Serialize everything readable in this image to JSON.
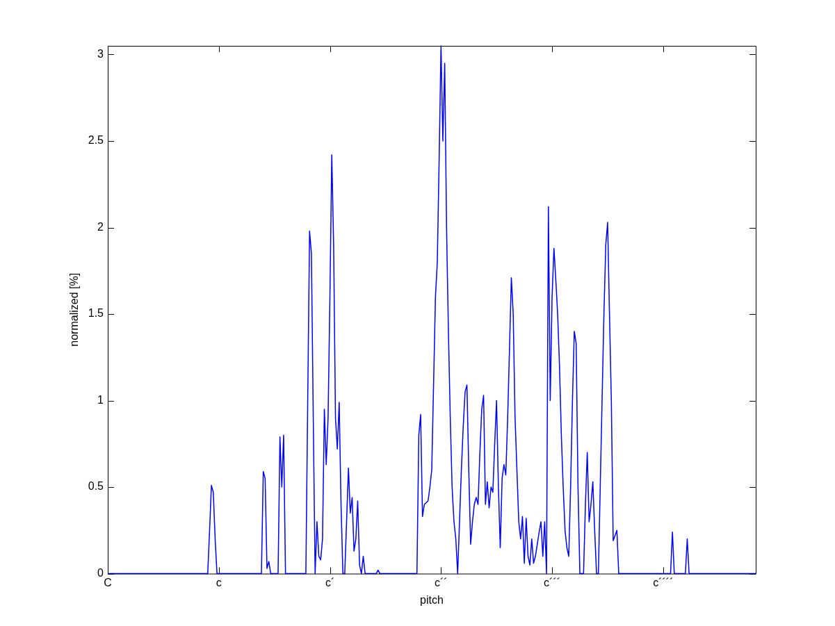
{
  "chart_data": {
    "type": "line",
    "xlabel": "pitch",
    "ylabel": "normalized [%]",
    "categories": [
      "C",
      null,
      null,
      null,
      null,
      null,
      null,
      null,
      null,
      null,
      null,
      null,
      null,
      null,
      null,
      null,
      null,
      null,
      null,
      null,
      null,
      null,
      null,
      null,
      null,
      null,
      null,
      null,
      null,
      null,
      null,
      null,
      null,
      null,
      null,
      null,
      null,
      null,
      null,
      null,
      null,
      null,
      null,
      null,
      null,
      null,
      null,
      null,
      null,
      null,
      null,
      null,
      null,
      null,
      null,
      null,
      null,
      null,
      null,
      null,
      "c",
      null,
      null,
      null,
      null,
      null,
      null,
      null,
      null,
      null,
      null,
      null,
      null,
      null,
      null,
      null,
      null,
      null,
      null,
      null,
      null,
      null,
      null,
      null,
      null,
      null,
      null,
      null,
      null,
      null,
      null,
      null,
      null,
      null,
      null,
      null,
      null,
      null,
      null,
      null,
      null,
      null,
      null,
      null,
      null,
      null,
      null,
      null,
      null,
      null,
      null,
      null,
      null,
      null,
      null,
      null,
      null,
      null,
      null,
      null,
      "c´",
      null,
      null,
      null,
      null,
      null,
      null,
      null,
      null,
      null,
      null,
      null,
      null,
      null,
      null,
      null,
      null,
      null,
      null,
      null,
      null,
      null,
      null,
      null,
      null,
      null,
      null,
      null,
      null,
      null,
      null,
      null,
      null,
      null,
      null,
      null,
      null,
      null,
      null,
      null,
      null,
      null,
      null,
      null,
      null,
      null,
      null,
      null,
      null,
      null,
      null,
      null,
      null,
      null,
      null,
      null,
      null,
      null,
      null,
      null,
      "c´´",
      null,
      null,
      null,
      null,
      null,
      null,
      null,
      null,
      null,
      null,
      null,
      null,
      null,
      null,
      null,
      null,
      null,
      null,
      null,
      null,
      null,
      null,
      null,
      null,
      null,
      null,
      null,
      null,
      null,
      null,
      null,
      null,
      null,
      null,
      null,
      null,
      null,
      null,
      null,
      null,
      null,
      null,
      null,
      null,
      null,
      null,
      null,
      null,
      null,
      null,
      null,
      null,
      null,
      null,
      null,
      null,
      null,
      null,
      null,
      "c´´´",
      null,
      null,
      null,
      null,
      null,
      null,
      null,
      null,
      null,
      null,
      null,
      null,
      null,
      null,
      null,
      null,
      null,
      null,
      null,
      null,
      null,
      null,
      null,
      null,
      null,
      null,
      null,
      null,
      null,
      null,
      null,
      null,
      null,
      null,
      null,
      null,
      null,
      null,
      null,
      null,
      null,
      null,
      null,
      null,
      null,
      null,
      null,
      null,
      null,
      null,
      null,
      null,
      null,
      null,
      null,
      null,
      null,
      null,
      null,
      "c´´´´",
      null,
      null,
      null,
      null,
      null,
      null,
      null,
      null,
      null,
      null,
      null,
      null,
      null,
      null,
      null,
      null,
      null,
      null,
      null,
      null,
      null,
      null,
      null,
      null,
      null,
      null,
      null,
      null,
      null,
      null,
      null,
      null,
      null,
      null,
      null,
      null,
      null,
      null,
      null,
      null,
      null,
      null,
      null,
      null,
      null,
      null,
      null,
      null,
      null,
      null
    ],
    "ylim": [
      0,
      3.05
    ],
    "yticks": [
      {
        "value": 0,
        "label": "0"
      },
      {
        "value": 0.5,
        "label": "0.5"
      },
      {
        "value": 1,
        "label": "1"
      },
      {
        "value": 1.5,
        "label": "1.5"
      },
      {
        "value": 2,
        "label": "2"
      },
      {
        "value": 2.5,
        "label": "2.5"
      },
      {
        "value": 3,
        "label": "3"
      }
    ],
    "grid": false,
    "legend": false,
    "marker": "none",
    "line_style": "solid",
    "series": [
      {
        "color": "#0000ff",
        "values": [
          0,
          0,
          0,
          0,
          0,
          0,
          0,
          0,
          0,
          0,
          0,
          0,
          0,
          0,
          0,
          0,
          0,
          0,
          0,
          0,
          0,
          0,
          0,
          0,
          0,
          0,
          0,
          0,
          0,
          0,
          0,
          0,
          0,
          0,
          0,
          0,
          0,
          0,
          0,
          0,
          0,
          0,
          0,
          0,
          0,
          0,
          0,
          0,
          0,
          0,
          0,
          0,
          0,
          0,
          0,
          0.25,
          0.51,
          0.47,
          0.2,
          0,
          0,
          0,
          0,
          0,
          0,
          0,
          0,
          0,
          0,
          0,
          0,
          0,
          0,
          0,
          0,
          0,
          0,
          0,
          0,
          0,
          0,
          0,
          0,
          0,
          0.59,
          0.55,
          0.03,
          0.07,
          0,
          0,
          0,
          0,
          0,
          0.79,
          0.5,
          0.8,
          0,
          0,
          0,
          0,
          0,
          0,
          0,
          0,
          0,
          0,
          0,
          0,
          0.99,
          1.98,
          1.85,
          0.9,
          0,
          0.3,
          0.1,
          0.08,
          0.2,
          0.95,
          0.63,
          0.9,
          1.6,
          2.42,
          1.9,
          0.9,
          0.72,
          0.99,
          0.4,
          0,
          0,
          0.3,
          0.61,
          0.35,
          0.44,
          0.13,
          0.2,
          0.42,
          0.05,
          0,
          0.1,
          0,
          0,
          0,
          0,
          0,
          0,
          0,
          0.02,
          0,
          0,
          0,
          0,
          0,
          0,
          0,
          0,
          0,
          0,
          0,
          0,
          0,
          0,
          0,
          0,
          0,
          0,
          0,
          0,
          0,
          0.8,
          0.92,
          0.33,
          0.4,
          0.41,
          0.42,
          0.5,
          0.6,
          1.1,
          1.6,
          1.8,
          2.4,
          3.05,
          2.5,
          2.95,
          2.0,
          1.4,
          0.9,
          0.5,
          0.3,
          0.2,
          0,
          0.3,
          0.6,
          0.85,
          1.05,
          1.09,
          0.6,
          0.17,
          0.3,
          0.4,
          0.44,
          0.4,
          0.7,
          0.95,
          1.03,
          0.4,
          0.53,
          0.38,
          0.5,
          0.47,
          0.75,
          1.0,
          0.5,
          0.15,
          0.55,
          0.63,
          0.57,
          0.9,
          1.3,
          1.71,
          1.5,
          0.9,
          0.6,
          0.3,
          0.2,
          0.33,
          0.06,
          0.32,
          0.1,
          0.05,
          0.2,
          0.06,
          0.1,
          0.17,
          0.24,
          0.3,
          0.1,
          0.3,
          0,
          2.12,
          1.0,
          1.6,
          1.88,
          1.7,
          1.5,
          1.2,
          0.8,
          0.5,
          0.25,
          0.15,
          0.1,
          0.5,
          1.0,
          1.4,
          1.33,
          0.5,
          0,
          0,
          0,
          0.4,
          0.7,
          0.3,
          0.4,
          0.53,
          0.25,
          0,
          0,
          0.5,
          1.0,
          1.5,
          1.9,
          2.03,
          1.5,
          1.0,
          0.19,
          0.22,
          0.25,
          0,
          0,
          0,
          0,
          0,
          0,
          0,
          0,
          0,
          0,
          0,
          0,
          0,
          0,
          0,
          0,
          0,
          0,
          0,
          0,
          0,
          0,
          0,
          0,
          0,
          0,
          0,
          0,
          0,
          0.24,
          0,
          0,
          0,
          0,
          0,
          0,
          0,
          0.2,
          0,
          0,
          0,
          0,
          0,
          0,
          0,
          0,
          0,
          0,
          0,
          0,
          0,
          0,
          0,
          0,
          0,
          0,
          0,
          0,
          0,
          0,
          0,
          0,
          0,
          0,
          0,
          0,
          0,
          0,
          0,
          0,
          0,
          0,
          0,
          0,
          0
        ]
      }
    ]
  }
}
